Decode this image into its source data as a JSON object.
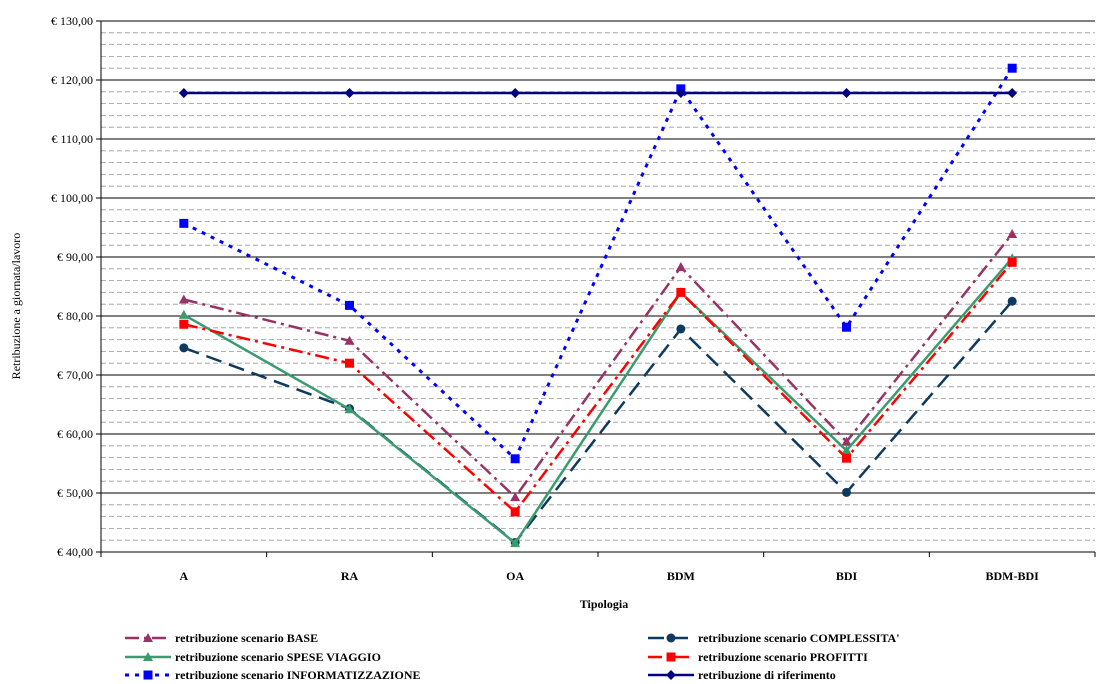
{
  "chart_data": {
    "type": "line",
    "xlabel": "Tipologia",
    "ylabel": "Retribuzione a giornata/lavoro",
    "categories": [
      "A",
      "RA",
      "OA",
      "BDM",
      "BDI",
      "BDM-BDI"
    ],
    "ylim": [
      40,
      130
    ],
    "y_major_step": 10,
    "y_minor_step": 2,
    "y_tick_labels": [
      "€ 40,00",
      "€ 50,00",
      "€ 60,00",
      "€ 70,00",
      "€ 80,00",
      "€ 90,00",
      "€ 100,00",
      "€ 110,00",
      "€ 120,00",
      "€ 130,00"
    ],
    "grid": true,
    "legend_position": "bottom",
    "series": [
      {
        "name": "retribuzione scenario BASE",
        "values": [
          82.8,
          75.8,
          49.3,
          88.3,
          58.7,
          93.9
        ],
        "color": "#993366",
        "marker": "triangle",
        "dash": "dashdot"
      },
      {
        "name": "retribuzione scenario COMPLESSITA'",
        "values": [
          74.6,
          64.3,
          41.6,
          77.8,
          50.1,
          82.5
        ],
        "color": "#0f3a5f",
        "marker": "circle",
        "dash": "longdash"
      },
      {
        "name": "retribuzione scenario SPESE VIAGGIO",
        "values": [
          80.2,
          64.2,
          41.5,
          84.0,
          57.2,
          89.8
        ],
        "color": "#3a9b6e",
        "marker": "triangle",
        "dash": "solid"
      },
      {
        "name": "retribuzione scenario PROFITTI",
        "values": [
          78.6,
          72.0,
          46.8,
          84.0,
          55.9,
          89.1
        ],
        "color": "#ff0000",
        "marker": "square",
        "dash": "dashdot"
      },
      {
        "name": "retribuzione scenario INFORMATIZZAZIONE",
        "values": [
          95.7,
          81.8,
          55.8,
          118.5,
          78.1,
          122.0
        ],
        "color": "#0000ff",
        "marker": "square",
        "dash": "dotted"
      },
      {
        "name": "retribuzione di riferimento",
        "values": [
          117.8,
          117.8,
          117.8,
          117.8,
          117.8,
          117.8
        ],
        "color": "#000080",
        "marker": "diamond",
        "dash": "solid"
      }
    ]
  }
}
